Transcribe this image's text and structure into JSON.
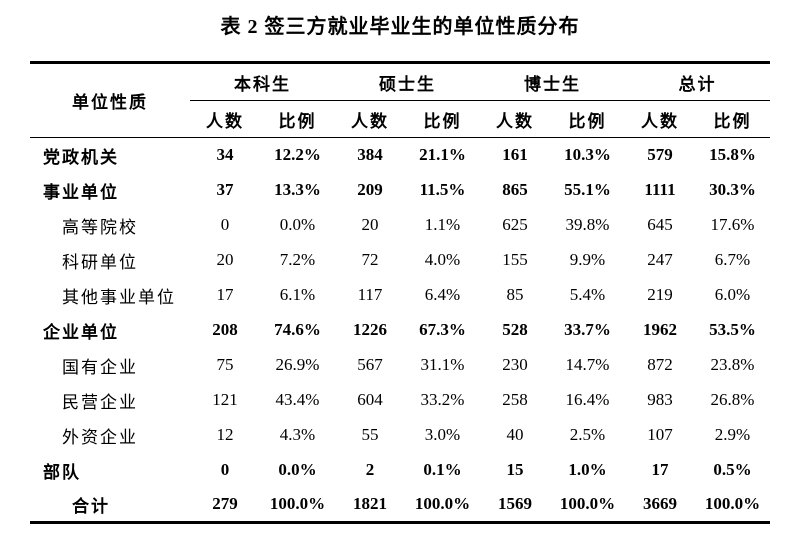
{
  "title": "表 2 签三方就业毕业生的单位性质分布",
  "table": {
    "corner_header": "单位性质",
    "group_headers": [
      "本科生",
      "硕士生",
      "博士生",
      "总计"
    ],
    "sub_headers": [
      "人数",
      "比例",
      "人数",
      "比例",
      "人数",
      "比例",
      "人数",
      "比例"
    ],
    "rows": [
      {
        "label": "党政机关",
        "style": "category",
        "values": [
          "34",
          "12.2%",
          "384",
          "21.1%",
          "161",
          "10.3%",
          "579",
          "15.8%"
        ]
      },
      {
        "label": "事业单位",
        "style": "category",
        "values": [
          "37",
          "13.3%",
          "209",
          "11.5%",
          "865",
          "55.1%",
          "1111",
          "30.3%"
        ]
      },
      {
        "label": "高等院校",
        "style": "sub",
        "values": [
          "0",
          "0.0%",
          "20",
          "1.1%",
          "625",
          "39.8%",
          "645",
          "17.6%"
        ]
      },
      {
        "label": "科研单位",
        "style": "sub",
        "values": [
          "20",
          "7.2%",
          "72",
          "4.0%",
          "155",
          "9.9%",
          "247",
          "6.7%"
        ]
      },
      {
        "label": "其他事业单位",
        "style": "sub",
        "values": [
          "17",
          "6.1%",
          "117",
          "6.4%",
          "85",
          "5.4%",
          "219",
          "6.0%"
        ]
      },
      {
        "label": "企业单位",
        "style": "category",
        "values": [
          "208",
          "74.6%",
          "1226",
          "67.3%",
          "528",
          "33.7%",
          "1962",
          "53.5%"
        ]
      },
      {
        "label": "国有企业",
        "style": "sub",
        "values": [
          "75",
          "26.9%",
          "567",
          "31.1%",
          "230",
          "14.7%",
          "872",
          "23.8%"
        ]
      },
      {
        "label": "民营企业",
        "style": "sub",
        "values": [
          "121",
          "43.4%",
          "604",
          "33.2%",
          "258",
          "16.4%",
          "983",
          "26.8%"
        ]
      },
      {
        "label": "外资企业",
        "style": "sub",
        "values": [
          "12",
          "4.3%",
          "55",
          "3.0%",
          "40",
          "2.5%",
          "107",
          "2.9%"
        ]
      },
      {
        "label": "部队",
        "style": "category",
        "values": [
          "0",
          "0.0%",
          "2",
          "0.1%",
          "15",
          "1.0%",
          "17",
          "0.5%"
        ]
      },
      {
        "label": "合计",
        "style": "total",
        "values": [
          "279",
          "100.0%",
          "1821",
          "100.0%",
          "1569",
          "100.0%",
          "3669",
          "100.0%"
        ]
      }
    ]
  }
}
